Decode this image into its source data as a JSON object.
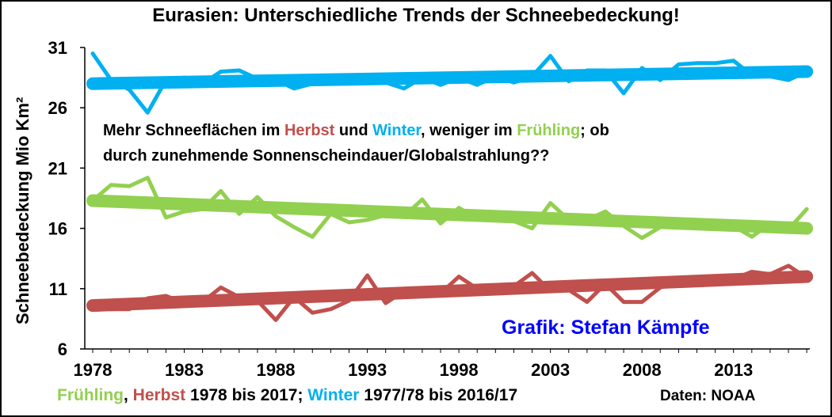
{
  "title": "Eurasien: Unterschiedliche Trends der Schneebedeckung!",
  "colors": {
    "fruehling": "#92d050",
    "herbst": "#c0504d",
    "winter": "#00b0f0",
    "credit": "#0000ff"
  },
  "annotation": {
    "p1": "Mehr Schneeflächen im ",
    "herbst": "Herbst",
    "p2": " und ",
    "winter": "Winter",
    "p3": ", weniger im ",
    "fruehling": "Frühling",
    "p4": "; ob",
    "line2": "durch zunehmende Sonnenscheindauer/Globalstrahlung??"
  },
  "credit": "Grafik: Stefan Kämpfe",
  "footer": {
    "fruehling": "Frühling",
    "sep1": ", ",
    "herbst": "Herbst",
    "mid": " 1978 bis 2017; ",
    "winter": "Winter",
    "end": " 1977/78 bis 2016/17"
  },
  "source": "Daten: NOAA",
  "chart_data": {
    "type": "line",
    "ylabel": "Schneebedeckung Mio Km²",
    "xlabel": "",
    "xlim": [
      1978,
      2017
    ],
    "ylim": [
      6,
      31
    ],
    "xticks": [
      1978,
      1983,
      1988,
      1993,
      1998,
      2003,
      2008,
      2013
    ],
    "yticks": [
      6,
      11,
      16,
      21,
      26,
      31
    ],
    "x": [
      1978,
      1979,
      1980,
      1981,
      1982,
      1983,
      1984,
      1985,
      1986,
      1987,
      1988,
      1989,
      1990,
      1991,
      1992,
      1993,
      1994,
      1995,
      1996,
      1997,
      1998,
      1999,
      2000,
      2001,
      2002,
      2003,
      2004,
      2005,
      2006,
      2007,
      2008,
      2009,
      2010,
      2011,
      2012,
      2013,
      2014,
      2015,
      2016,
      2017
    ],
    "series": [
      {
        "key": "winter",
        "values": [
          30.5,
          28.3,
          27.5,
          25.6,
          28.3,
          28.5,
          28.0,
          29.0,
          29.1,
          28.4,
          28.3,
          27.6,
          28.0,
          28.6,
          28.2,
          28.6,
          28.1,
          27.6,
          28.5,
          27.9,
          28.5,
          27.9,
          28.6,
          28.1,
          28.6,
          30.3,
          28.2,
          29.1,
          29.1,
          27.2,
          29.3,
          28.3,
          29.6,
          29.7,
          29.7,
          29.9,
          28.7,
          28.6,
          28.3,
          29.0
        ]
      },
      {
        "key": "herbst",
        "values": [
          9.6,
          9.3,
          9.3,
          10.2,
          10.4,
          9.8,
          9.9,
          11.1,
          10.3,
          10.0,
          8.4,
          10.3,
          9.0,
          9.3,
          10.0,
          12.1,
          9.8,
          10.8,
          10.6,
          10.6,
          12.0,
          11.0,
          11.1,
          11.2,
          12.3,
          10.8,
          10.9,
          9.9,
          11.4,
          9.9,
          9.9,
          11.1,
          11.5,
          11.4,
          11.7,
          11.8,
          12.4,
          12.2,
          12.9,
          11.9
        ]
      },
      {
        "key": "fruehling",
        "values": [
          18.3,
          19.6,
          19.5,
          20.2,
          16.9,
          17.4,
          17.6,
          19.1,
          17.2,
          18.6,
          17.0,
          16.1,
          15.3,
          17.2,
          16.5,
          16.7,
          17.1,
          17.0,
          18.4,
          16.4,
          17.7,
          16.8,
          16.8,
          16.6,
          16.0,
          18.1,
          16.7,
          16.7,
          17.4,
          16.2,
          15.2,
          16.1,
          16.7,
          16.2,
          16.0,
          16.2,
          15.3,
          16.4,
          15.9,
          17.6
        ]
      }
    ],
    "trends": [
      {
        "key": "winter",
        "start": 28.0,
        "end": 29.0
      },
      {
        "key": "herbst",
        "start": 9.6,
        "end": 12.0
      },
      {
        "key": "fruehling",
        "start": 18.3,
        "end": 16.0
      }
    ],
    "grid": false,
    "legend": "none"
  }
}
